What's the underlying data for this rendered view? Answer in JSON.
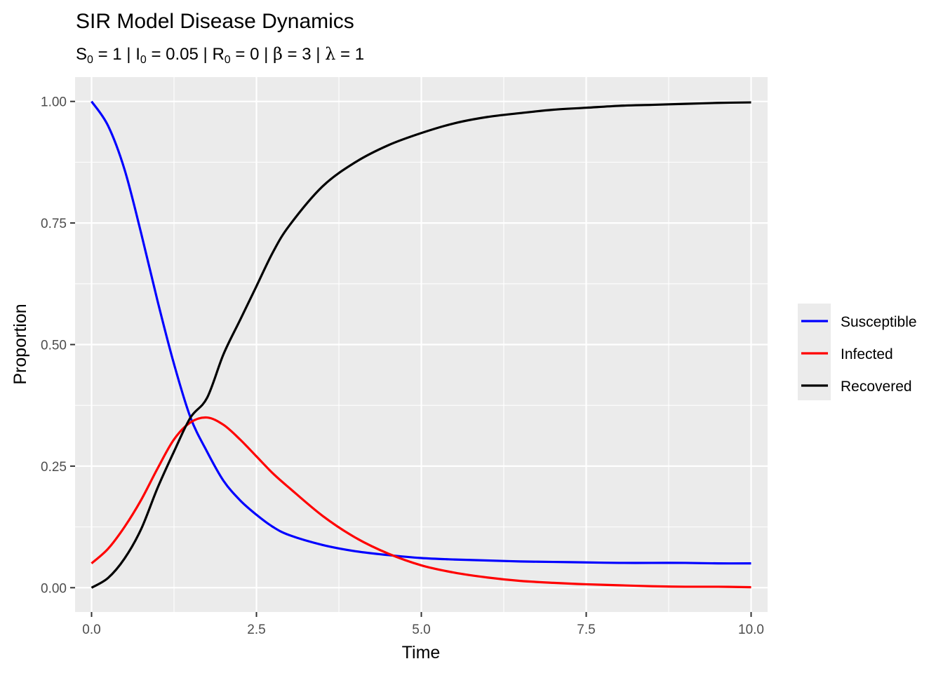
{
  "chart_data": {
    "type": "line",
    "title": "SIR Model Disease Dynamics",
    "subtitle": {
      "S0": {
        "symbol": "S",
        "sub": "0",
        "value": "1"
      },
      "I0": {
        "symbol": "I",
        "sub": "0",
        "value": "0.05"
      },
      "R0": {
        "symbol": "R",
        "sub": "0",
        "value": "0"
      },
      "beta": {
        "symbol": "β",
        "value": "3"
      },
      "lambda": {
        "symbol": "λ",
        "value": "1"
      }
    },
    "xlabel": "Time",
    "ylabel": "Proportion",
    "xlim": [
      -0.25,
      10.25
    ],
    "ylim": [
      -0.05,
      1.05
    ],
    "x_ticks": [
      "0.0",
      "2.5",
      "5.0",
      "7.5",
      "10.0"
    ],
    "y_ticks": [
      "0.00",
      "0.25",
      "0.50",
      "0.75",
      "1.00"
    ],
    "grid": true,
    "legend_position": "right",
    "x": [
      0,
      0.25,
      0.5,
      0.75,
      1,
      1.25,
      1.5,
      1.75,
      2,
      2.25,
      2.5,
      2.75,
      3,
      3.5,
      4,
      4.5,
      5,
      5.5,
      6,
      6.5,
      7,
      7.5,
      8,
      8.5,
      9,
      9.5,
      10
    ],
    "series": [
      {
        "name": "Susceptible",
        "color": "#0000ff",
        "values": [
          1.0,
          0.95,
          0.86,
          0.73,
          0.59,
          0.46,
          0.35,
          0.28,
          0.22,
          0.18,
          0.15,
          0.125,
          0.108,
          0.088,
          0.075,
          0.067,
          0.061,
          0.058,
          0.056,
          0.054,
          0.053,
          0.052,
          0.051,
          0.051,
          0.051,
          0.05,
          0.05
        ]
      },
      {
        "name": "Infected",
        "color": "#ff0000",
        "values": [
          0.05,
          0.08,
          0.125,
          0.18,
          0.245,
          0.305,
          0.34,
          0.35,
          0.335,
          0.305,
          0.27,
          0.235,
          0.205,
          0.148,
          0.103,
          0.07,
          0.046,
          0.031,
          0.021,
          0.014,
          0.01,
          0.007,
          0.005,
          0.003,
          0.002,
          0.002,
          0.001
        ]
      },
      {
        "name": "Recovered",
        "color": "#000000",
        "values": [
          0.0,
          0.02,
          0.06,
          0.12,
          0.205,
          0.28,
          0.35,
          0.39,
          0.48,
          0.55,
          0.62,
          0.69,
          0.745,
          0.825,
          0.875,
          0.91,
          0.935,
          0.955,
          0.968,
          0.976,
          0.983,
          0.987,
          0.991,
          0.993,
          0.995,
          0.997,
          0.998
        ]
      }
    ]
  }
}
